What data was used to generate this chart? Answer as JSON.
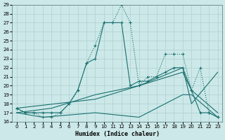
{
  "xlabel": "Humidex (Indice chaleur)",
  "bg_color": "#cce8e8",
  "line_color": "#1a7070",
  "grid_color": "#b0d0d0",
  "xlim": [
    -0.5,
    23.5
  ],
  "ylim": [
    16,
    29
  ],
  "xticks": [
    0,
    1,
    2,
    3,
    4,
    5,
    6,
    7,
    8,
    9,
    10,
    11,
    12,
    13,
    14,
    15,
    16,
    17,
    18,
    19,
    20,
    21,
    22,
    23
  ],
  "yticks": [
    16,
    17,
    18,
    19,
    20,
    21,
    22,
    23,
    24,
    25,
    26,
    27,
    28,
    29
  ],
  "line_dotted_x": [
    0,
    1,
    2,
    3,
    4,
    5,
    6,
    7,
    8,
    9,
    10,
    11,
    12,
    13,
    14,
    15,
    16,
    17,
    18,
    19,
    20,
    21,
    22,
    23
  ],
  "line_dotted_y": [
    17.5,
    17,
    17,
    16.5,
    16.5,
    17,
    18,
    19.5,
    22.5,
    24.5,
    27,
    27,
    29,
    27,
    20,
    21,
    21,
    23.5,
    23.5,
    23.5,
    19.5,
    22,
    17,
    16.5
  ],
  "line_solid1_x": [
    0,
    1,
    2,
    3,
    4,
    5,
    6,
    7,
    8,
    9,
    10,
    11,
    12,
    13,
    14,
    15,
    16,
    17,
    18,
    19,
    20,
    21,
    22,
    23
  ],
  "line_solid1_y": [
    17.5,
    17,
    17,
    17,
    17,
    17,
    18,
    19.5,
    22.5,
    23,
    27,
    27,
    27,
    20,
    20.5,
    20.5,
    21,
    21.5,
    22,
    22,
    19.5,
    17,
    17,
    16.5
  ],
  "line_diag1_x": [
    0,
    4,
    9,
    14,
    19,
    20,
    23
  ],
  "line_diag1_y": [
    17,
    17.5,
    19,
    20,
    21.5,
    19.5,
    17
  ],
  "line_diag2_x": [
    0,
    3,
    9,
    14,
    19,
    20,
    23
  ],
  "line_diag2_y": [
    17,
    16.5,
    17,
    16.5,
    19,
    19,
    16.5
  ],
  "line_diag3_x": [
    0,
    9,
    14,
    19,
    20,
    23
  ],
  "line_diag3_y": [
    17.5,
    18.5,
    20,
    22,
    18,
    21.5
  ]
}
